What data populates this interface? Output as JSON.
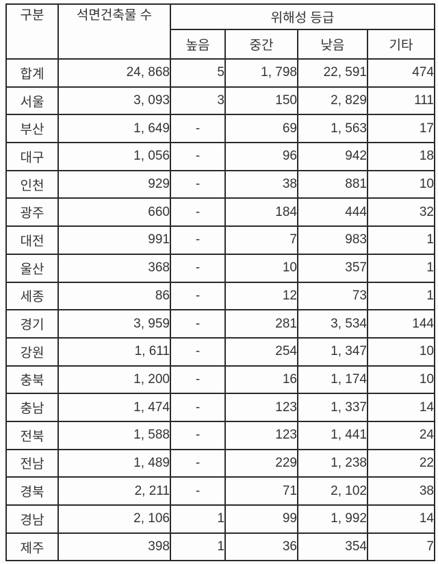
{
  "table": {
    "header": {
      "category": "구분",
      "building_count": "석면건축물 수",
      "risk_grade": "위해성 등급",
      "sub": [
        "높음",
        "중간",
        "낮음",
        "기타"
      ]
    },
    "rows": [
      {
        "region": "합계",
        "count": "24, 868",
        "high": "5",
        "middle": "1, 798",
        "low": "22, 591",
        "etc": "474"
      },
      {
        "region": "서울",
        "count": "3, 093",
        "high": "3",
        "middle": "150",
        "low": "2, 829",
        "etc": "111"
      },
      {
        "region": "부산",
        "count": "1, 649",
        "high": "-",
        "middle": "69",
        "low": "1, 563",
        "etc": "17"
      },
      {
        "region": "대구",
        "count": "1, 056",
        "high": "-",
        "middle": "96",
        "low": "942",
        "etc": "18"
      },
      {
        "region": "인천",
        "count": "929",
        "high": "-",
        "middle": "38",
        "low": "881",
        "etc": "10"
      },
      {
        "region": "광주",
        "count": "660",
        "high": "-",
        "middle": "184",
        "low": "444",
        "etc": "32"
      },
      {
        "region": "대전",
        "count": "991",
        "high": "-",
        "middle": "7",
        "low": "983",
        "etc": "1"
      },
      {
        "region": "울산",
        "count": "368",
        "high": "-",
        "middle": "10",
        "low": "357",
        "etc": "1"
      },
      {
        "region": "세종",
        "count": "86",
        "high": "-",
        "middle": "12",
        "low": "73",
        "etc": "1"
      },
      {
        "region": "경기",
        "count": "3, 959",
        "high": "-",
        "middle": "281",
        "low": "3, 534",
        "etc": "144"
      },
      {
        "region": "강원",
        "count": "1, 611",
        "high": "-",
        "middle": "254",
        "low": "1, 347",
        "etc": "10"
      },
      {
        "region": "충북",
        "count": "1, 200",
        "high": "-",
        "middle": "16",
        "low": "1, 174",
        "etc": "10"
      },
      {
        "region": "충남",
        "count": "1, 474",
        "high": "-",
        "middle": "123",
        "low": "1, 337",
        "etc": "14"
      },
      {
        "region": "전북",
        "count": "1, 588",
        "high": "-",
        "middle": "123",
        "low": "1, 441",
        "etc": "24"
      },
      {
        "region": "전남",
        "count": "1, 489",
        "high": "-",
        "middle": "229",
        "low": "1, 238",
        "etc": "22"
      },
      {
        "region": "경북",
        "count": "2, 211",
        "high": "-",
        "middle": "71",
        "low": "2, 102",
        "etc": "38"
      },
      {
        "region": "경남",
        "count": "2, 106",
        "high": "1",
        "middle": "99",
        "low": "1, 992",
        "etc": "14"
      },
      {
        "region": "제주",
        "count": "398",
        "high": "1",
        "middle": "36",
        "low": "354",
        "etc": "7"
      }
    ]
  },
  "colors": {
    "border": "#2a2a2a",
    "text": "#333333",
    "background": "#fdfdfd"
  }
}
